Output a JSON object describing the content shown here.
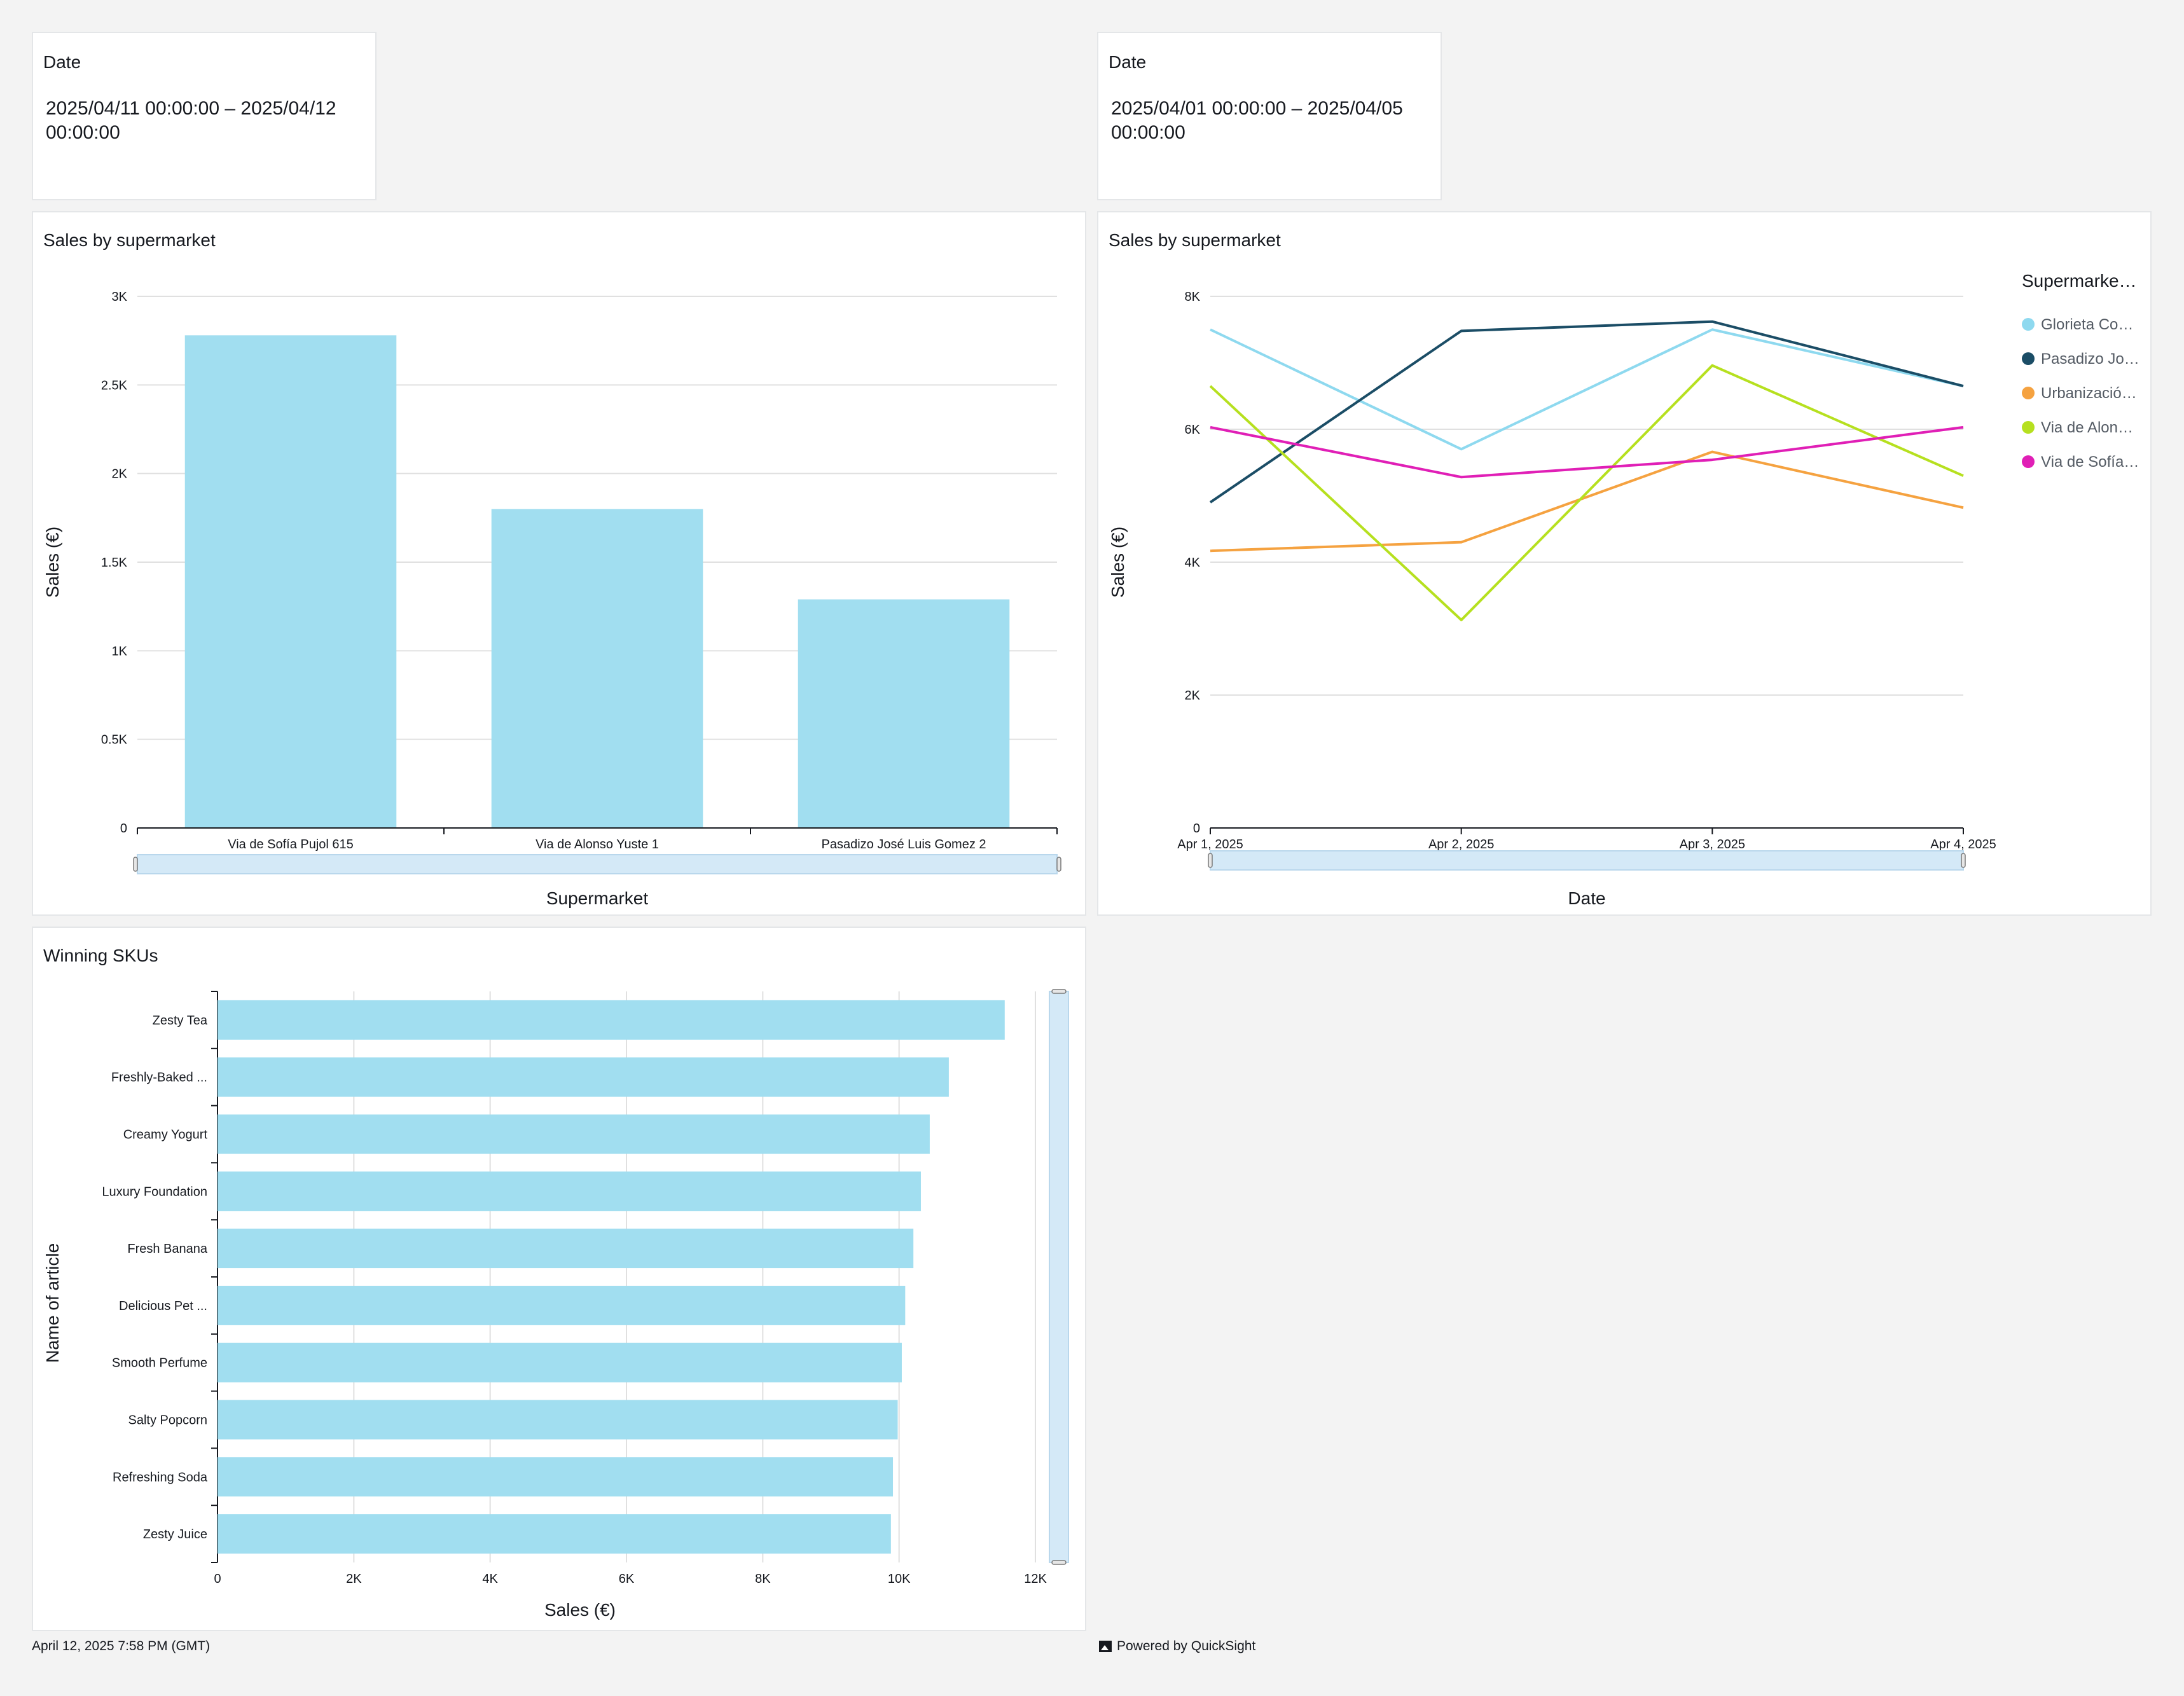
{
  "filters": [
    {
      "title": "Date",
      "value": "2025/04/11 00:00:00 – 2025/04/12 00:00:00"
    },
    {
      "title": "Date",
      "value": "2025/04/01 00:00:00 – 2025/04/05 00:00:00"
    }
  ],
  "footer": {
    "timestamp": "April 12, 2025 7:58 PM (GMT)",
    "powered_by": "Powered by QuickSight",
    "icon": "quicksight-logo-icon"
  },
  "colors": {
    "bar": "#a1def0",
    "scrollbar": "#d4e9f7",
    "grid": "#e0e0e0"
  },
  "chart_data": [
    {
      "type": "bar",
      "title": "Sales by supermarket",
      "xlabel": "Supermarket",
      "ylabel": "Sales (€)",
      "ylim": [
        0,
        3000
      ],
      "yticks": [
        "0",
        "0.5K",
        "1K",
        "1.5K",
        "2K",
        "2.5K",
        "3K"
      ],
      "categories": [
        "Via de Sofía Pujol 615",
        "Via de Alonso Yuste 1",
        "Pasadizo José Luis Gomez 2"
      ],
      "values": [
        2780,
        1800,
        1290
      ],
      "grid": true
    },
    {
      "type": "line",
      "title": "Sales by supermarket",
      "xlabel": "Date",
      "ylabel": "Sales (€)",
      "ylim": [
        0,
        8000
      ],
      "yticks": [
        "0",
        "2K",
        "4K",
        "6K",
        "8K"
      ],
      "x": [
        "Apr 1, 2025",
        "Apr 2, 2025",
        "Apr 3, 2025",
        "Apr 4, 2025"
      ],
      "legend_title": "Supermarke…",
      "legend_position": "right",
      "series": [
        {
          "name": "Glorieta Co…",
          "color": "#8ed9ef",
          "values": [
            7500,
            5700,
            7500,
            6650
          ]
        },
        {
          "name": "Pasadizo Jo…",
          "color": "#1b4d66",
          "values": [
            4900,
            7480,
            7620,
            6650
          ]
        },
        {
          "name": "Urbanizació…",
          "color": "#f5a240",
          "values": [
            4170,
            4300,
            5660,
            4820
          ]
        },
        {
          "name": "Via de Alon…",
          "color": "#b6e01f",
          "values": [
            6650,
            3130,
            6960,
            5300
          ]
        },
        {
          "name": "Via de Sofía…",
          "color": "#e01fb6",
          "values": [
            6030,
            5280,
            5540,
            6030
          ]
        }
      ],
      "grid": true
    },
    {
      "type": "bar",
      "orientation": "horizontal",
      "title": "Winning SKUs",
      "xlabel": "Sales (€)",
      "ylabel": "Name of article",
      "xlim": [
        0,
        12000
      ],
      "xticks": [
        "0",
        "2K",
        "4K",
        "6K",
        "8K",
        "10K",
        "12K"
      ],
      "categories": [
        "Zesty Tea",
        "Freshly-Baked ...",
        "Creamy Yogurt",
        "Luxury Foundation",
        "Fresh Banana",
        "Delicious Pet ...",
        "Smooth Perfume",
        "Salty Popcorn",
        "Refreshing Soda",
        "Zesty Juice"
      ],
      "values": [
        11550,
        10730,
        10450,
        10320,
        10210,
        10090,
        10040,
        9980,
        9910,
        9880
      ],
      "grid": true
    }
  ]
}
